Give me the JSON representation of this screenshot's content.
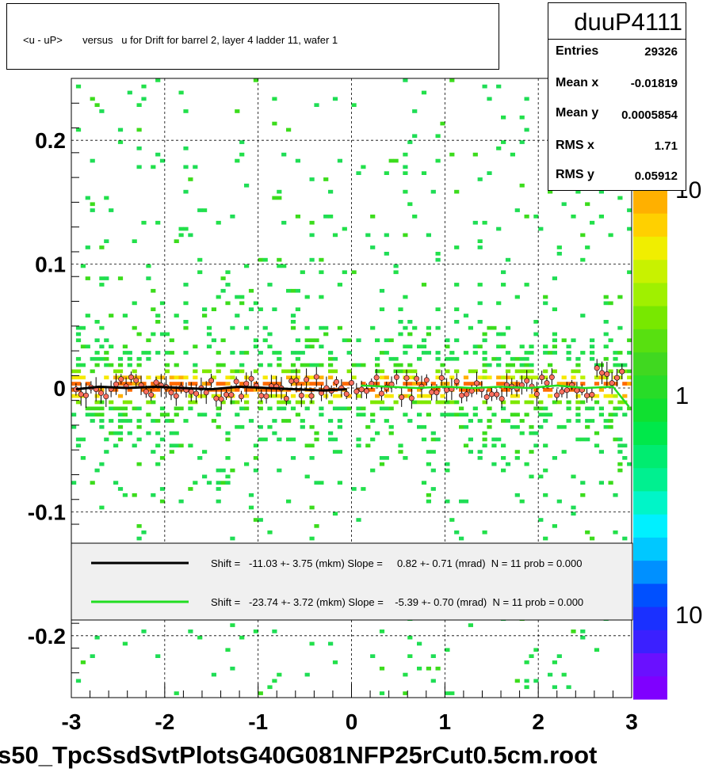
{
  "title": "<u - uP>       versus   u for Drift for barrel 2, layer 4 ladder 11, wafer 1",
  "stats": {
    "name": "duuP4111",
    "rows": [
      {
        "label": "Entries",
        "value": "29326"
      },
      {
        "label": "Mean x",
        "value": "-0.01819"
      },
      {
        "label": "Mean y",
        "value": "0.0005854"
      },
      {
        "label": "RMS x",
        "value": "1.71"
      },
      {
        "label": "RMS y",
        "value": "0.05912"
      }
    ]
  },
  "file_label": "s50_TpcSsdSvtPlotsG40G081NFP25rCut0.5cm.root",
  "colors": {
    "black_fit": "#000000",
    "green_fit": "#22dd22",
    "points": "#ff5555"
  },
  "chart_data": {
    "type": "heatmap",
    "xlim": [
      -3,
      3
    ],
    "ylim": [
      -0.25,
      0.25
    ],
    "x_ticks": [
      "-3",
      "-2",
      "-1",
      "0",
      "1",
      "2",
      "3"
    ],
    "y_ticks": [
      "-0.2",
      "-0.1",
      "0",
      "0.1",
      "0.2"
    ],
    "colorbar_labels": [
      "10",
      "1",
      "10"
    ],
    "grid": true,
    "legend": {
      "placement": "lower-middle",
      "entries": [
        {
          "color": "#000000",
          "text": "Shift =   -11.03 +- 3.75 (mkm) Slope =     0.82 +- 0.71 (mrad)  N = 11 prob = 0.000"
        },
        {
          "color": "#22dd22",
          "text": "Shift =   -23.74 +- 3.72 (mkm) Slope =    -5.39 +- 0.70 (mrad)  N = 11 prob = 0.000"
        }
      ]
    },
    "series": [
      {
        "x": [
          -2.95,
          -2.7,
          -2.4,
          -2.1,
          -1.8,
          -1.5,
          -1.2,
          -0.9,
          -0.6,
          -0.3,
          -0.05
        ],
        "y": [
          -0.001,
          0.001,
          0.0,
          0.001,
          0.0,
          -0.001,
          0.001,
          0.0,
          -0.001,
          -0.002,
          -0.001
        ]
      },
      {
        "x": [
          0.1,
          0.4,
          0.7,
          1.0,
          1.3,
          1.6,
          1.9,
          2.2,
          2.5,
          2.8,
          2.97
        ],
        "y": [
          0.002,
          0.001,
          0.0,
          0.001,
          0.0,
          0.001,
          0.0,
          0.002,
          0.0,
          0.001,
          -0.015
        ]
      }
    ]
  }
}
